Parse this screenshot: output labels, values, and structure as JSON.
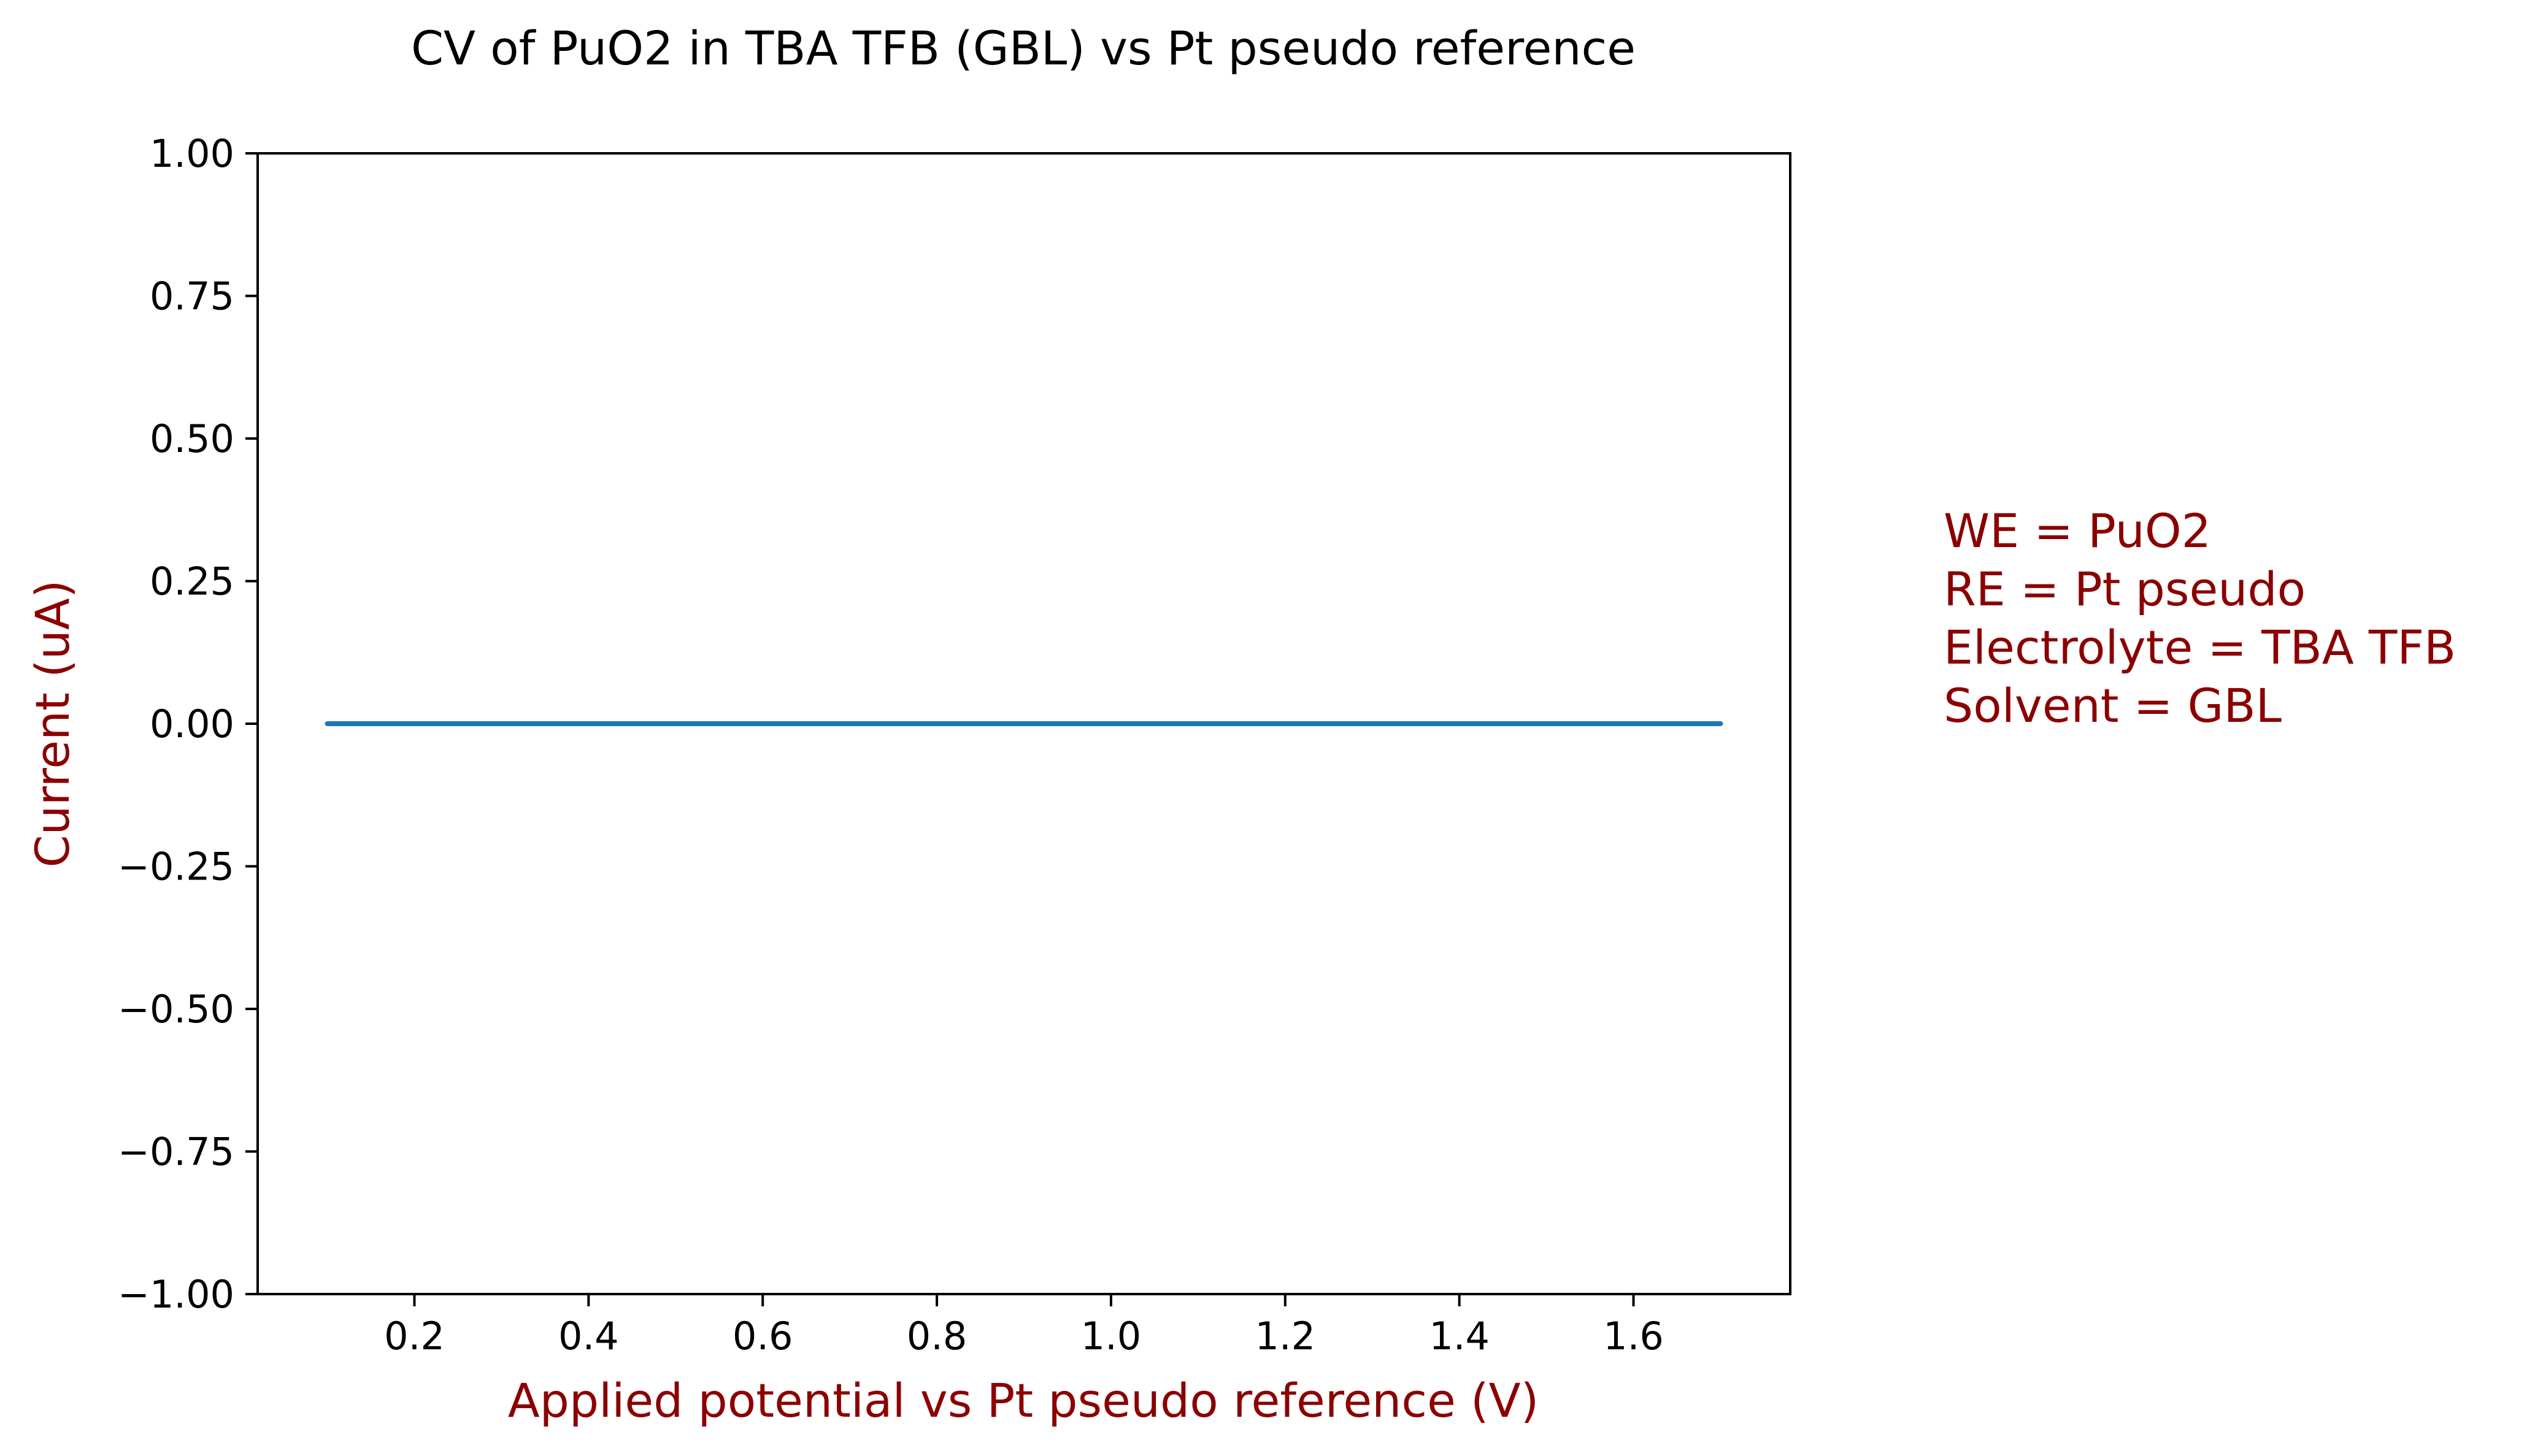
{
  "chart_data": {
    "type": "line",
    "title": "CV of PuO2 in TBA TFB (GBL) vs Pt pseudo reference",
    "xlabel": "Applied potential vs Pt pseudo reference (V)",
    "ylabel": "Current (uA)",
    "xlim": [
      0.02,
      1.78
    ],
    "ylim": [
      -1.0,
      1.0
    ],
    "xticks": [
      0.2,
      0.4,
      0.6,
      0.8,
      1.0,
      1.2,
      1.4,
      1.6
    ],
    "xtick_labels": [
      "0.2",
      "0.4",
      "0.6",
      "0.8",
      "1.0",
      "1.2",
      "1.4",
      "1.6"
    ],
    "yticks": [
      -1.0,
      -0.75,
      -0.5,
      -0.25,
      0.0,
      0.25,
      0.5,
      0.75,
      1.0
    ],
    "ytick_labels": [
      "−1.00",
      "−0.75",
      "−0.50",
      "−0.25",
      "0.00",
      "0.25",
      "0.50",
      "0.75",
      "1.00"
    ],
    "grid": false,
    "legend": "none",
    "series": [
      {
        "x": [
          0.1,
          1.7
        ],
        "y": [
          0.0,
          0.0
        ],
        "color": "#1f77b4"
      }
    ],
    "annotation": {
      "lines": [
        "WE = PuO2",
        "RE = Pt pseudo",
        "Electrolyte = TBA TFB",
        "Solvent = GBL"
      ],
      "color": "#8b0000"
    },
    "label_color": "#8b0000"
  }
}
